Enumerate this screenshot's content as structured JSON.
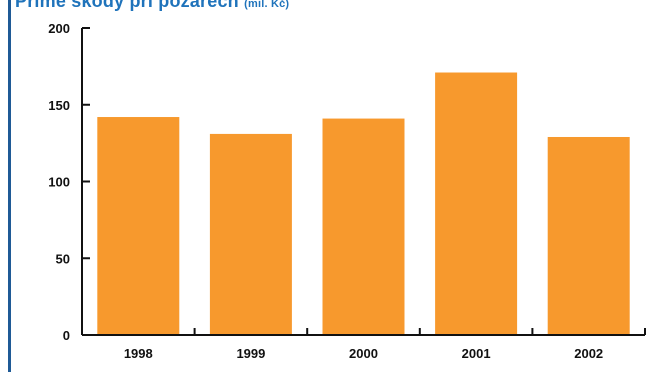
{
  "title": "Přímé škody při požárech",
  "title_unit": "(mil. Kč)",
  "colors": {
    "bar": "#f7992d",
    "title": "#1f73bb",
    "frame": "#1f5a96",
    "axis": "#111111"
  },
  "chart_data": {
    "type": "bar",
    "categories": [
      "1998",
      "1999",
      "2000",
      "2001",
      "2002"
    ],
    "values": [
      142,
      131,
      141,
      171,
      129
    ],
    "ylim": [
      0,
      200
    ],
    "yticks": [
      "0",
      "50",
      "100",
      "150",
      "200"
    ],
    "grid": false
  }
}
